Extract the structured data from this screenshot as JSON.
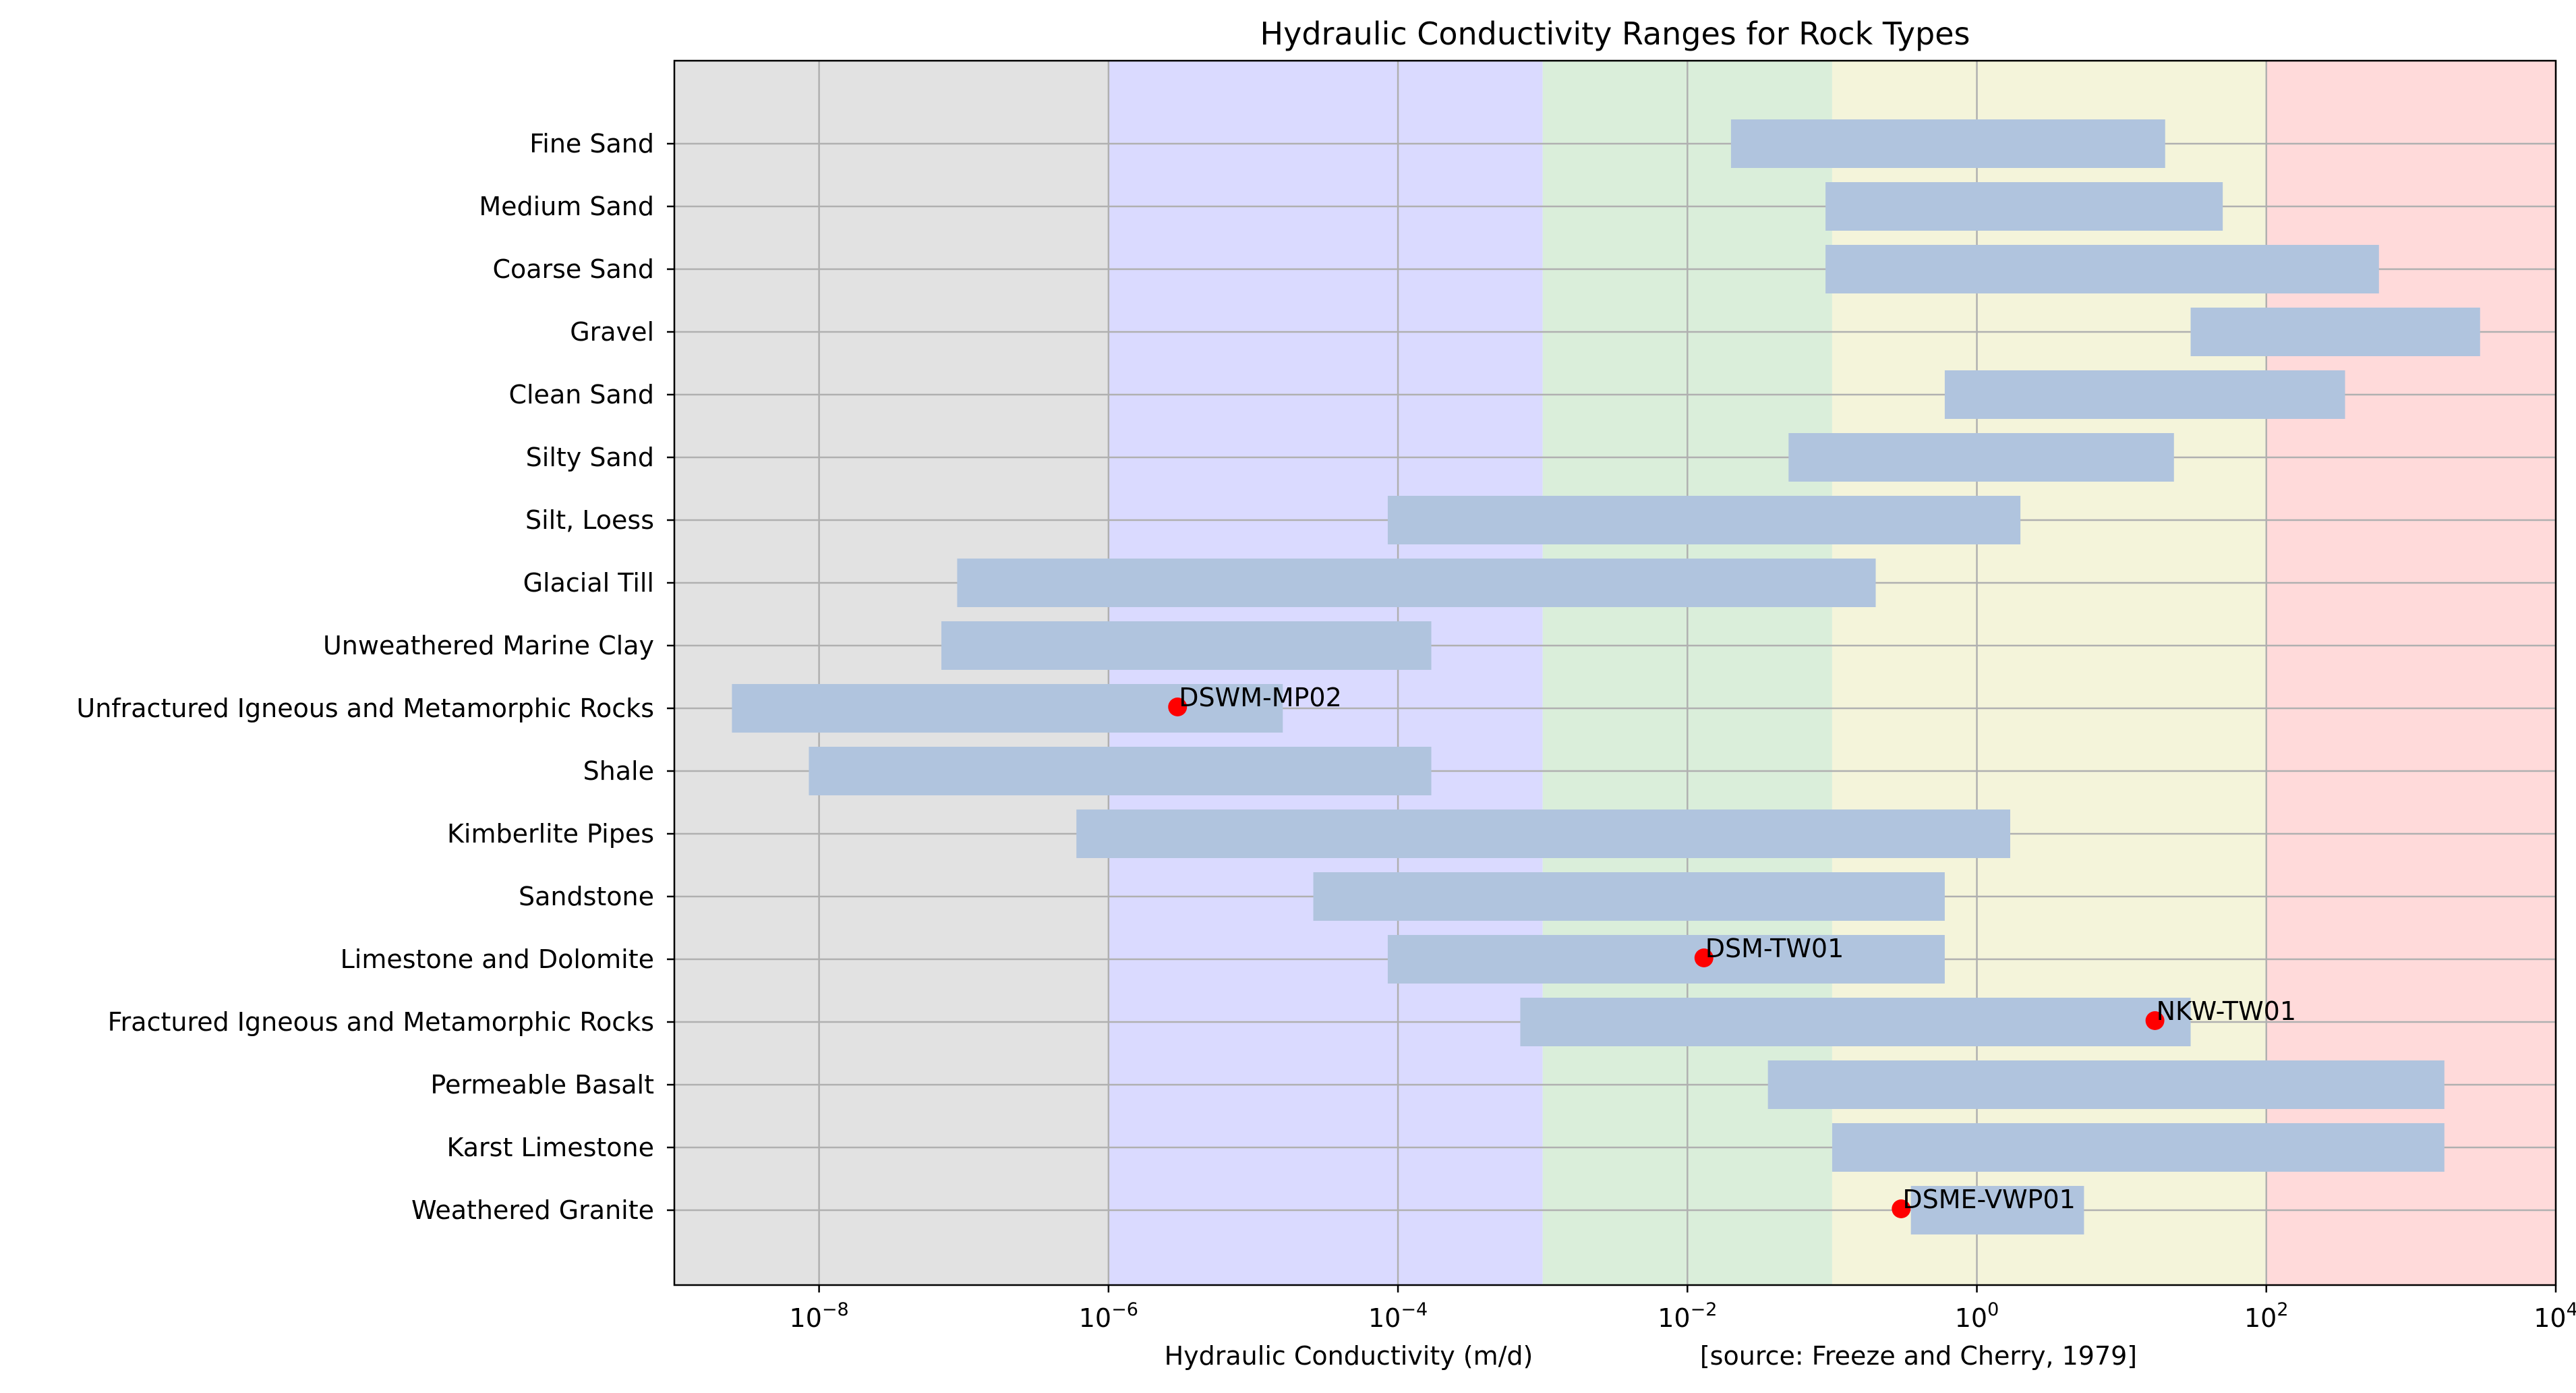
{
  "chart_data": {
    "type": "bar",
    "orientation": "horizontal",
    "x_scale": "log",
    "title": "Hydraulic Conductivity Ranges for Rock Types",
    "xlabel": "Hydraulic Conductivity (m/d)",
    "source_note": "[source: Freeze and Cherry, 1979]",
    "ylabel": "",
    "xlim": [
      1e-09,
      10000.0
    ],
    "x_ticks": [
      {
        "value": 1e-08,
        "base": "10",
        "exp": "−8"
      },
      {
        "value": 1e-06,
        "base": "10",
        "exp": "−6"
      },
      {
        "value": 0.0001,
        "base": "10",
        "exp": "−4"
      },
      {
        "value": 0.01,
        "base": "10",
        "exp": "−2"
      },
      {
        "value": 1,
        "base": "10",
        "exp": "0"
      },
      {
        "value": 100,
        "base": "10",
        "exp": "2"
      },
      {
        "value": 10000,
        "base": "10",
        "exp": "4"
      }
    ],
    "grid": true,
    "background_bands": [
      {
        "from": 1e-09,
        "to": 1e-06,
        "color": "#e2e2e2"
      },
      {
        "from": 1e-06,
        "to": 0.001,
        "color": "#dadaff"
      },
      {
        "from": 0.001,
        "to": 0.1,
        "color": "#daeeda"
      },
      {
        "from": 0.1,
        "to": 100,
        "color": "#f4f4da"
      },
      {
        "from": 100,
        "to": 10000,
        "color": "#ffdada"
      }
    ],
    "bar_color": "#b0c4de",
    "point_color": "#ff0000",
    "categories": [
      "Fine Sand",
      "Medium Sand",
      "Coarse Sand",
      "Gravel",
      "Clean Sand",
      "Silty Sand",
      "Silt, Loess",
      "Glacial Till",
      "Unweathered Marine Clay",
      "Unfractured Igneous and Metamorphic Rocks",
      "Shale",
      "Kimberlite Pipes",
      "Sandstone",
      "Limestone and Dolomite",
      "Fractured Igneous and Metamorphic Rocks",
      "Permeable Basalt",
      "Karst Limestone",
      "Weathered Granite"
    ],
    "ranges": [
      [
        0.02,
        20
      ],
      [
        0.09,
        50
      ],
      [
        0.09,
        600
      ],
      [
        30,
        3000
      ],
      [
        0.6,
        350
      ],
      [
        0.05,
        23
      ],
      [
        8.5e-05,
        2
      ],
      [
        9e-08,
        0.2
      ],
      [
        7e-08,
        0.00017
      ],
      [
        2.5e-09,
        1.6e-05
      ],
      [
        8.5e-09,
        0.00017
      ],
      [
        6e-07,
        1.7
      ],
      [
        2.6e-05,
        0.6
      ],
      [
        8.5e-05,
        0.6
      ],
      [
        0.0007,
        30
      ],
      [
        0.036,
        1700
      ],
      [
        0.1,
        1700
      ],
      [
        0.35,
        5.5
      ]
    ],
    "points": [
      {
        "label": "DSWM-MP02",
        "category": "Unfractured Igneous and Metamorphic Rocks",
        "x": 3e-06
      },
      {
        "label": "DSM-TW01",
        "category": "Limestone and Dolomite",
        "x": 0.013
      },
      {
        "label": "NKW-TW01",
        "category": "Fractured Igneous and Metamorphic Rocks",
        "x": 17
      },
      {
        "label": "DSME-VWP01",
        "category": "Weathered Granite",
        "x": 0.3
      }
    ]
  }
}
